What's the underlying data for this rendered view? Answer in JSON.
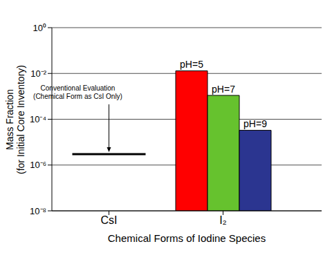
{
  "chart_data": {
    "type": "bar",
    "categories": [
      "CsI",
      "I₂"
    ],
    "series": [
      {
        "name": "pH=5",
        "color": "#ff0000",
        "values": [
          null,
          0.013
        ]
      },
      {
        "name": "pH=7",
        "color": "#66c22e",
        "values": [
          null,
          0.0011
        ]
      },
      {
        "name": "pH=9",
        "color": "#2b3590",
        "values": [
          null,
          3.3e-05
        ]
      }
    ],
    "xlabel": "Chemical Forms of Iodine Species",
    "ylabel": "Mass Fraction\n(for Initial Core Inventory)",
    "ylim": [
      1e-08,
      1
    ],
    "yticks": [
      {
        "value": 1e-08,
        "label": "10⁻⁸"
      },
      {
        "value": 1e-06,
        "label": "10⁻⁶"
      },
      {
        "value": 0.0001,
        "label": "10⁻⁴"
      },
      {
        "value": 0.01,
        "label": "10⁻²"
      },
      {
        "value": 1,
        "label": "10⁰"
      }
    ],
    "log": "y",
    "grid": true,
    "annotations": [
      {
        "text": "Conventional Evaluation\n(Chemical Form as CsI Only)",
        "category": "CsI",
        "value": 3e-06
      }
    ]
  }
}
